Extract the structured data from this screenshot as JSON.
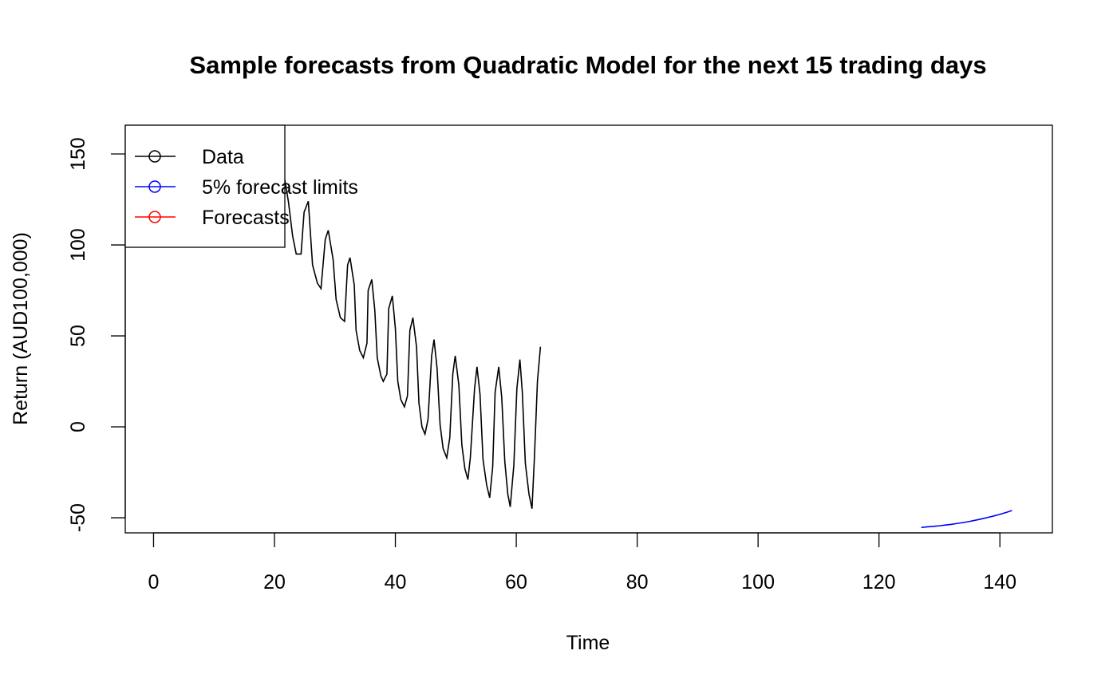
{
  "chart_data": {
    "type": "line",
    "title": "Sample forecasts from Quadratic Model for the next 15 trading days",
    "x_label": "Time",
    "y_label": "Return (AUD100,000)",
    "xlim": [
      -4.68,
      148.68
    ],
    "ylim": [
      -58.3,
      165.8
    ],
    "xticks": [
      0,
      20,
      40,
      60,
      80,
      100,
      120,
      140
    ],
    "yticks": [
      -50,
      0,
      50,
      100,
      150
    ],
    "legend": "top-left",
    "series": [
      {
        "name": "Data",
        "color": "#000000",
        "x": [
          21.7,
          22.3,
          23.0,
          23.6,
          24.4,
          24.9,
          25.6,
          26.3,
          27.1,
          27.7,
          28.4,
          28.9,
          29.7,
          30.2,
          30.9,
          31.6,
          32.1,
          32.5,
          33.2,
          33.5,
          34.1,
          34.7,
          35.3,
          35.5,
          36.1,
          36.6,
          37.0,
          37.6,
          38.0,
          38.6,
          38.9,
          39.5,
          40.0,
          40.4,
          40.9,
          41.5,
          42.0,
          42.4,
          42.9,
          43.5,
          43.9,
          44.4,
          44.9,
          45.4,
          46.0,
          46.4,
          46.9,
          47.4,
          47.9,
          48.5,
          49.0,
          49.5,
          49.9,
          50.5,
          51.0,
          51.5,
          52.0,
          52.4,
          53.1,
          53.5,
          54.0,
          54.5,
          55.1,
          55.6,
          56.1,
          56.5,
          57.1,
          57.6,
          58.1,
          58.6,
          59.0,
          59.6,
          60.1,
          60.6,
          61.0,
          61.5,
          62.1,
          62.6,
          63.0,
          63.5,
          64.0
        ],
        "values": [
          136,
          124,
          105,
          95,
          95,
          118,
          124,
          89,
          79,
          76,
          103,
          108,
          92,
          70,
          60,
          58,
          89,
          93,
          78,
          53,
          42,
          38,
          46,
          75,
          81,
          64,
          38,
          28,
          25,
          29,
          65,
          72,
          54,
          25,
          15,
          11,
          17,
          53,
          60,
          44,
          13,
          0,
          -4,
          4,
          39,
          48,
          32,
          1,
          -12,
          -17,
          -6,
          29,
          39,
          23,
          -10,
          -23,
          -29,
          -17,
          21,
          33,
          18,
          -18,
          -32,
          -39,
          -22,
          19,
          33,
          16,
          -19,
          -37,
          -44,
          -21,
          21,
          37,
          19,
          -20,
          -37,
          -45,
          -17,
          25,
          44
        ]
      },
      {
        "name": "5% forecast limits",
        "color": "#0000ff",
        "x": [
          127,
          128,
          129,
          130,
          131,
          132,
          133,
          134,
          135,
          136,
          137,
          138,
          139,
          140,
          141,
          142
        ],
        "values": [
          -55.3,
          -55.0,
          -54.7,
          -54.4,
          -54.0,
          -53.6,
          -53.1,
          -52.6,
          -52.0,
          -51.3,
          -50.6,
          -49.8,
          -49.0,
          -48.1,
          -47.1,
          -46.0
        ]
      },
      {
        "name": "Forecasts",
        "color": "#ff0000",
        "x": [],
        "values": []
      }
    ]
  }
}
